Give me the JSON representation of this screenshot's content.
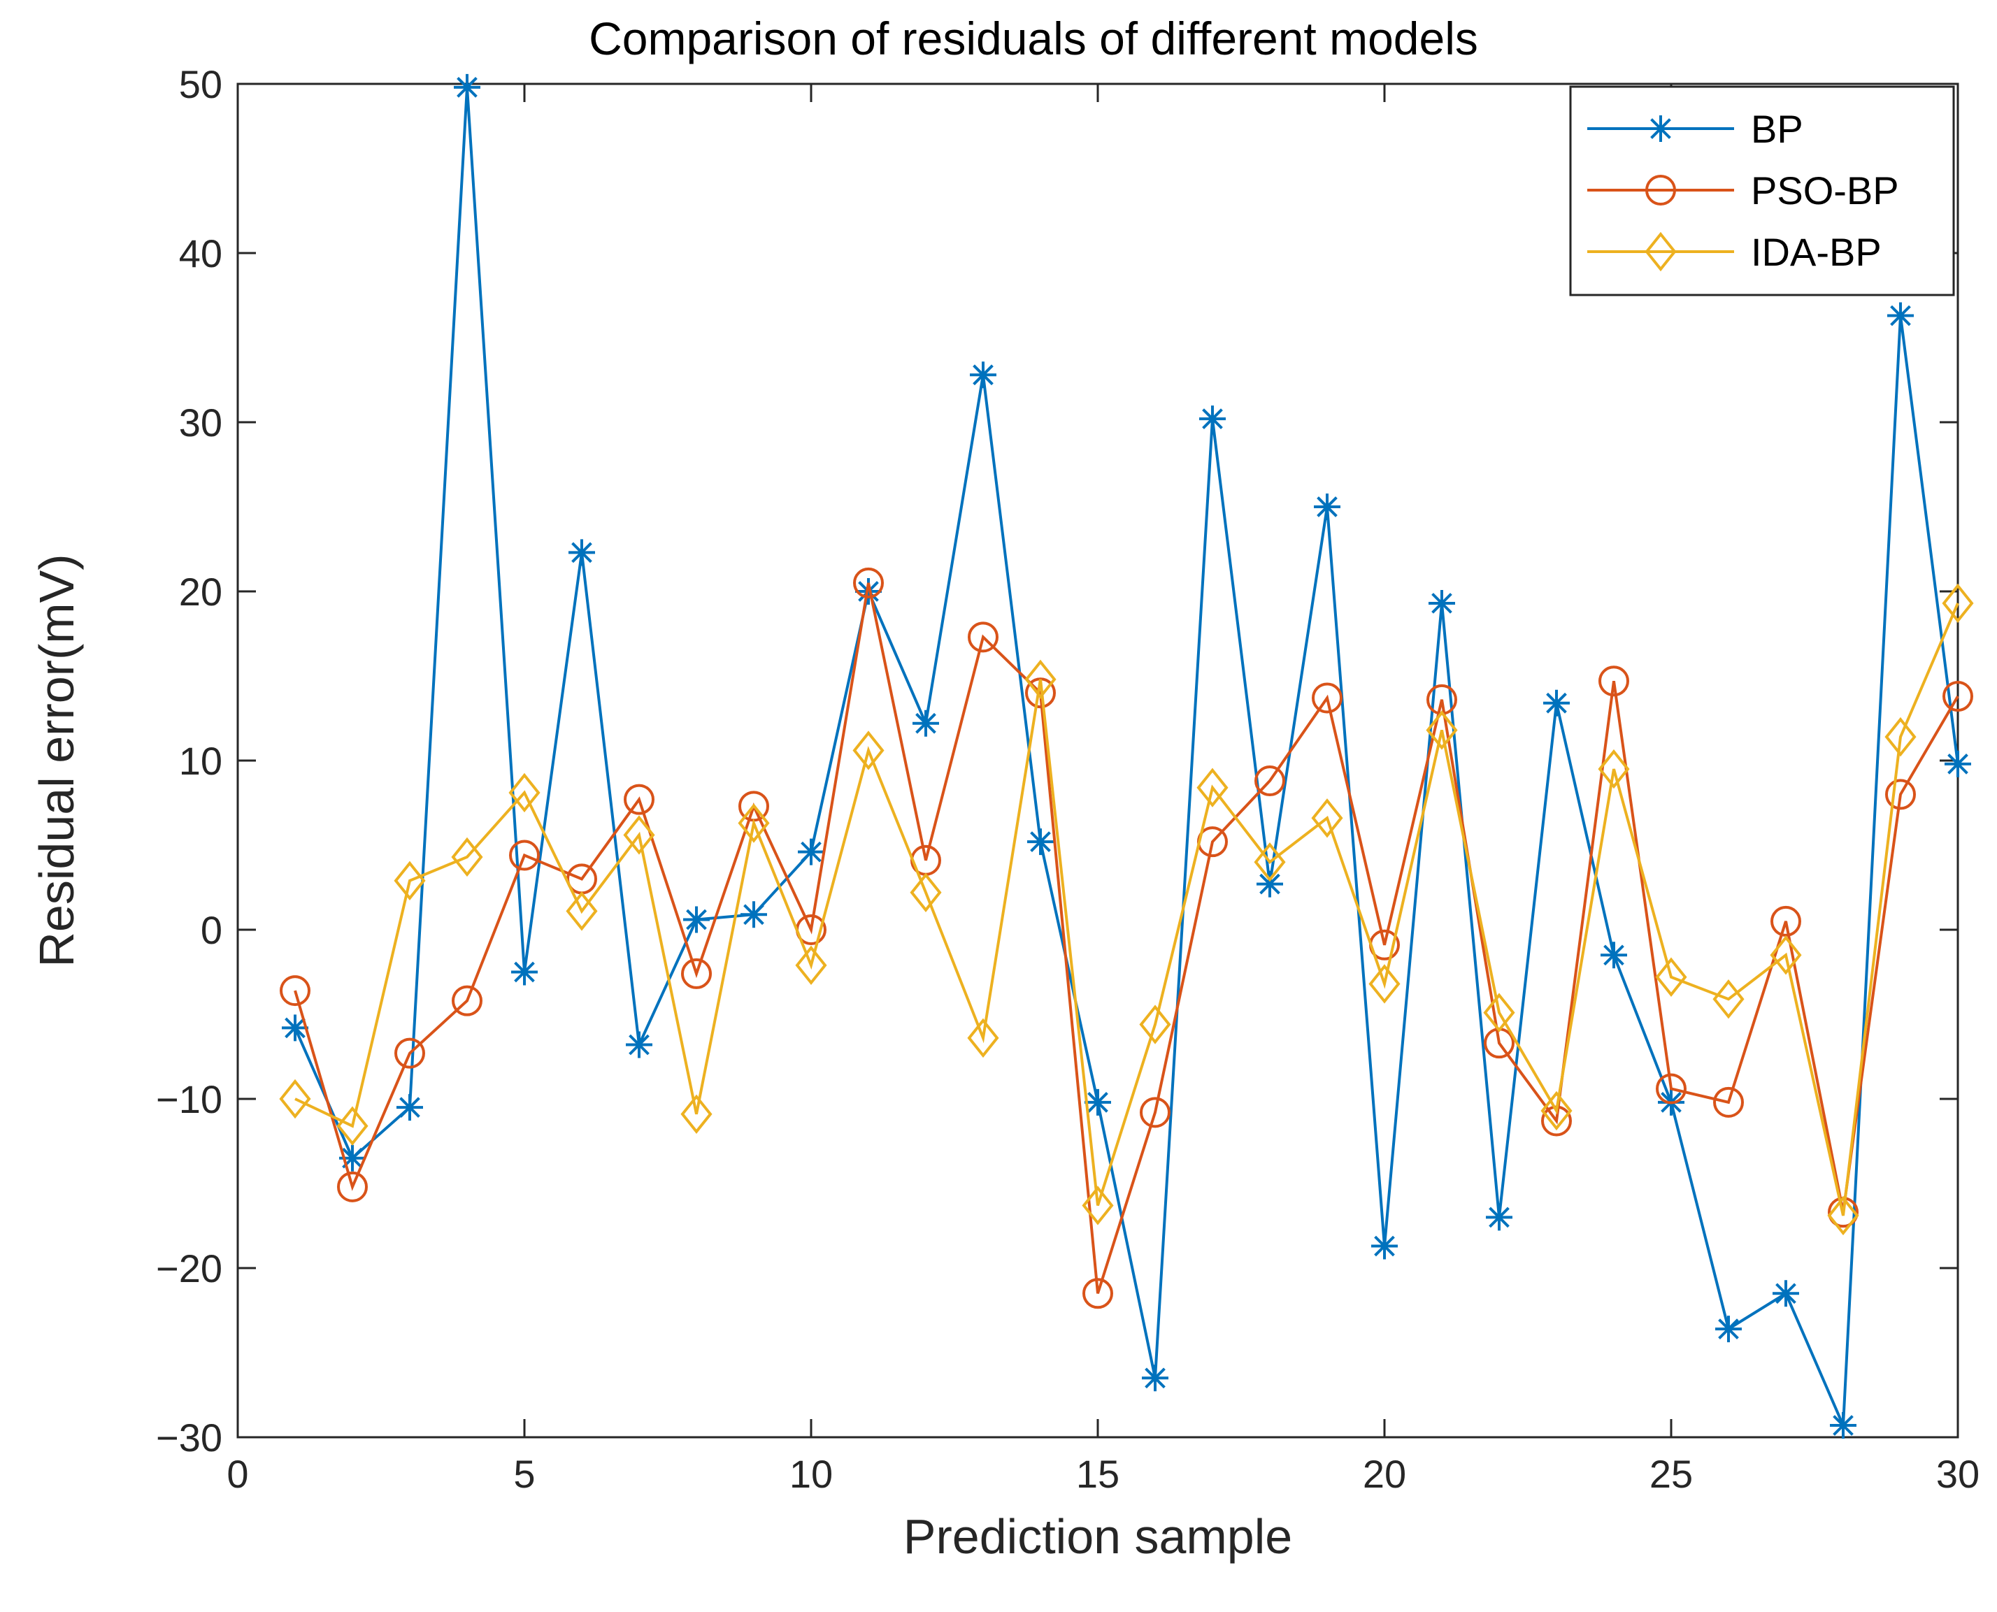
{
  "chart_data": {
    "type": "line",
    "title": "Comparison of residuals of different models",
    "xlabel": "Prediction sample",
    "ylabel": "Residual error(mV)",
    "xlim": [
      0,
      30
    ],
    "ylim": [
      -30,
      50
    ],
    "xticks": [
      0,
      5,
      10,
      15,
      20,
      25,
      30
    ],
    "yticks": [
      -30,
      -20,
      -10,
      0,
      10,
      20,
      30,
      40,
      50
    ],
    "xtick_labels": [
      "0",
      "5",
      "10",
      "15",
      "20",
      "25",
      "30"
    ],
    "ytick_labels": [
      "−30",
      "−20",
      "−10",
      "0",
      "10",
      "20",
      "30",
      "40",
      "50"
    ],
    "grid": false,
    "legend_position": "top-right",
    "x": [
      1,
      2,
      3,
      4,
      5,
      6,
      7,
      8,
      9,
      10,
      11,
      12,
      13,
      14,
      15,
      16,
      17,
      18,
      19,
      20,
      21,
      22,
      23,
      24,
      25,
      26,
      27,
      28,
      29,
      30
    ],
    "series": [
      {
        "name": "BP",
        "color": "#0072BD",
        "marker": "asterisk",
        "values": [
          -5.8,
          -13.5,
          -10.5,
          49.8,
          -2.5,
          22.3,
          -6.8,
          0.6,
          0.9,
          4.6,
          20.0,
          12.2,
          32.8,
          5.2,
          -10.2,
          -26.5,
          30.2,
          2.7,
          25.0,
          -18.7,
          19.3,
          -17.0,
          13.4,
          -1.5,
          -10.2,
          -23.6,
          -21.5,
          -29.3,
          36.3,
          9.8
        ]
      },
      {
        "name": "PSO-BP",
        "color": "#D95319",
        "marker": "circle",
        "values": [
          -3.6,
          -15.2,
          -7.3,
          -4.2,
          4.4,
          3.0,
          7.7,
          -2.6,
          7.3,
          0.0,
          20.5,
          4.1,
          17.3,
          14.0,
          -21.5,
          -10.8,
          5.2,
          8.8,
          13.7,
          -0.9,
          13.6,
          -6.7,
          -11.3,
          14.7,
          -9.4,
          -10.2,
          0.5,
          -16.7,
          8.0,
          13.8
        ]
      },
      {
        "name": "IDA-BP",
        "color": "#EDB120",
        "marker": "diamond",
        "values": [
          -10.0,
          -11.6,
          2.9,
          4.3,
          8.1,
          1.1,
          5.6,
          -10.9,
          6.3,
          -2.1,
          10.6,
          2.2,
          -6.4,
          14.8,
          -16.3,
          -5.6,
          8.4,
          4.0,
          6.6,
          -3.2,
          11.8,
          -4.9,
          -10.7,
          9.5,
          -2.8,
          -4.1,
          -1.5,
          -16.9,
          11.4,
          19.3
        ]
      }
    ]
  }
}
